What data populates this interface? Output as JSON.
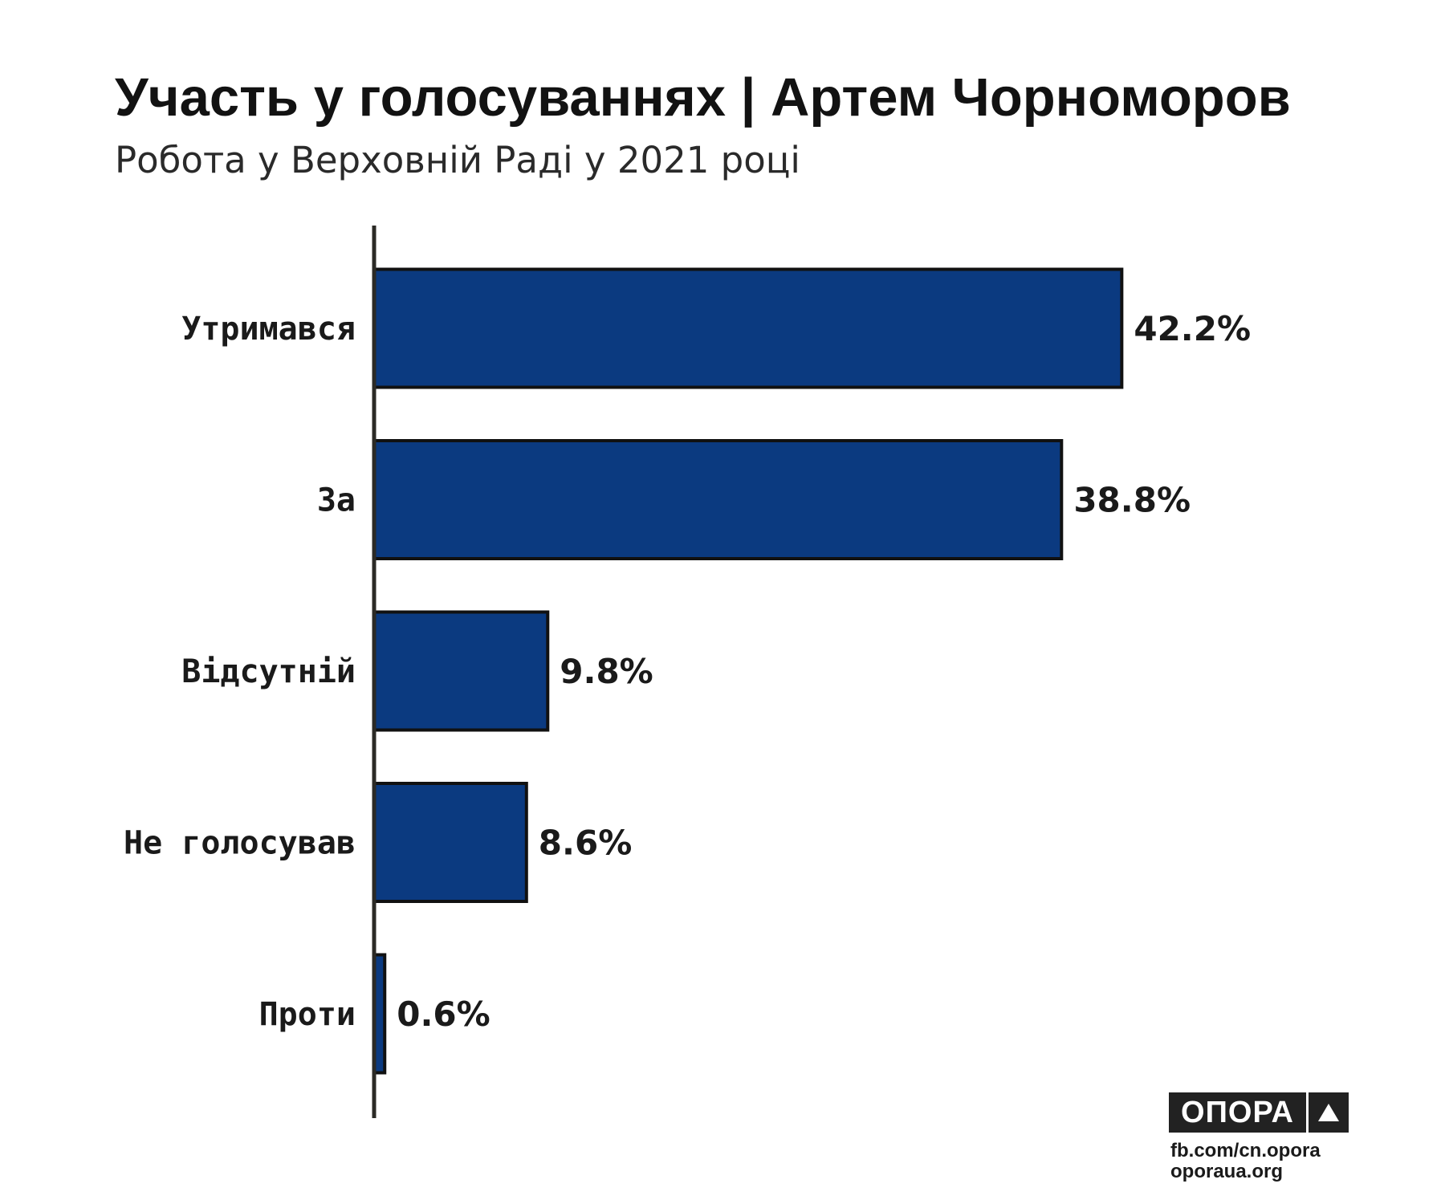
{
  "header": {
    "title": "Участь у голосуваннях | Артем Чорноморов",
    "subtitle": "Робота у Верховній Раді у 2021 році"
  },
  "chart_data": {
    "type": "bar",
    "orientation": "horizontal",
    "categories": [
      "Утримався",
      "За",
      "Відсутній",
      "Не голосував",
      "Проти"
    ],
    "values": [
      42.2,
      38.8,
      9.8,
      8.6,
      0.6
    ],
    "value_labels": [
      "42.2%",
      "38.8%",
      "9.8%",
      "8.6%",
      "0.6%"
    ],
    "unit": "%",
    "grid": false,
    "legend": false,
    "bar_color": "#0b3a80",
    "bar_outline_color": "#111111"
  },
  "branding": {
    "logo_text": "ОПОРА",
    "logo_icon": "triangle-icon",
    "links": [
      "fb.com/cn.opora",
      "oporaua.org"
    ]
  },
  "colors": {
    "bar": "#0b3a80",
    "axis": "#2b2a26",
    "text": "#1a1a1a",
    "logo_background": "#222222"
  }
}
